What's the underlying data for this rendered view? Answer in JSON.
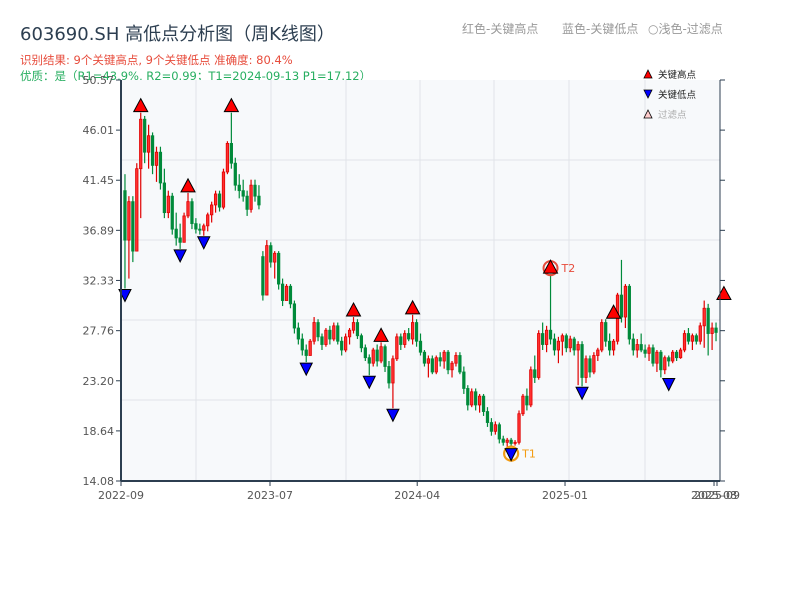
{
  "header": {
    "title": "603690.SH 高低点分析图（周K线图）",
    "result_line": "识别结果: 9个关键高点, 9个关键低点  准确度: 80.4%",
    "quality_line": "优质：是（R1=43.9%, R2=0.99；T1=2024-09-13 P1=17.12）",
    "hint_red": "红色-关键高点",
    "hint_blue": "蓝色-关键低点",
    "hint_filtered": "○浅色-过滤点"
  },
  "legend": {
    "items": [
      {
        "label": "关键高点",
        "marker": "triangle-up",
        "color": "#ff0000"
      },
      {
        "label": "关键低点",
        "marker": "triangle-down",
        "color": "#0000ff"
      },
      {
        "label": "过滤点",
        "marker": "triangle-up-light",
        "color": "#ffcccc"
      }
    ]
  },
  "colors": {
    "up": "#e00000",
    "down": "#008a3a",
    "grid": "#e1e4e8",
    "plot_bg": "#f7f9fb",
    "axis": "#2c3e50",
    "t1_ring": "#f39c12",
    "t2_ring": "#e74c3c"
  },
  "chart_data": {
    "type": "candlestick",
    "title": "603690.SH 高低点分析图（周K线图）",
    "xlabel": "",
    "ylabel": "",
    "ylim": [
      14.08,
      50.57
    ],
    "y_ticks": [
      14.08,
      18.64,
      23.2,
      27.76,
      32.33,
      36.89,
      41.45,
      46.01,
      50.57
    ],
    "x_ticks": [
      {
        "label": "2022-09",
        "pos": 0
      },
      {
        "label": "2023-07",
        "pos": 0.25
      },
      {
        "label": "2024-04",
        "pos": 0.497
      },
      {
        "label": "2025-01",
        "pos": 0.745
      },
      {
        "label": "2025-08",
        "pos": 0.995
      },
      {
        "label": "2025-09",
        "pos": 1.0
      }
    ],
    "key_highs": [
      {
        "idx": 4,
        "price": 47.6
      },
      {
        "idx": 16,
        "price": 40.3
      },
      {
        "idx": 27,
        "price": 47.6
      },
      {
        "idx": 58,
        "price": 29.0
      },
      {
        "idx": 65,
        "price": 26.7
      },
      {
        "idx": 73,
        "price": 29.2
      },
      {
        "idx": 108,
        "price": 32.9,
        "tag": "T2"
      },
      {
        "idx": 124,
        "price": 28.8
      },
      {
        "idx": 152,
        "price": 30.5
      }
    ],
    "key_lows": [
      {
        "idx": 0,
        "price": 31.6
      },
      {
        "idx": 14,
        "price": 35.2
      },
      {
        "idx": 20,
        "price": 36.4
      },
      {
        "idx": 46,
        "price": 24.9
      },
      {
        "idx": 62,
        "price": 23.7
      },
      {
        "idx": 68,
        "price": 20.7
      },
      {
        "idx": 98,
        "price": 17.12,
        "tag": "T1"
      },
      {
        "idx": 116,
        "price": 22.7
      },
      {
        "idx": 138,
        "price": 23.5
      }
    ],
    "candles": [
      [
        40.5,
        42.0,
        31.6,
        36.0
      ],
      [
        36.0,
        40.0,
        32.5,
        39.5
      ],
      [
        39.5,
        40.0,
        34.0,
        35.0
      ],
      [
        35.0,
        43.0,
        36.5,
        42.5
      ],
      [
        42.5,
        47.6,
        38.0,
        47.0
      ],
      [
        47.0,
        47.3,
        43.0,
        44.0
      ],
      [
        44.0,
        46.5,
        42.5,
        45.5
      ],
      [
        45.5,
        45.8,
        42.0,
        42.8
      ],
      [
        42.8,
        44.5,
        41.3,
        44.0
      ],
      [
        44.0,
        44.5,
        40.6,
        41.2
      ],
      [
        41.2,
        42.5,
        38.0,
        38.5
      ],
      [
        38.5,
        40.5,
        38.0,
        40.0
      ],
      [
        40.0,
        40.3,
        36.5,
        37.0
      ],
      [
        37.0,
        38.5,
        35.5,
        36.2
      ],
      [
        36.2,
        37.5,
        35.2,
        35.8
      ],
      [
        35.8,
        38.5,
        36.0,
        38.2
      ],
      [
        38.2,
        40.3,
        38.0,
        39.5
      ],
      [
        39.5,
        39.8,
        37.0,
        37.5
      ],
      [
        37.5,
        38.0,
        36.6,
        37.0
      ],
      [
        37.0,
        37.5,
        36.5,
        36.9
      ],
      [
        36.9,
        37.5,
        36.4,
        37.3
      ],
      [
        37.3,
        38.5,
        36.8,
        38.3
      ],
      [
        38.3,
        39.5,
        37.6,
        39.2
      ],
      [
        39.2,
        40.5,
        38.5,
        40.2
      ],
      [
        40.2,
        40.5,
        38.6,
        39.0
      ],
      [
        39.0,
        42.5,
        38.8,
        42.2
      ],
      [
        42.2,
        45.0,
        42.0,
        44.8
      ],
      [
        44.8,
        47.6,
        42.5,
        43.0
      ],
      [
        43.0,
        43.5,
        40.5,
        41.0
      ],
      [
        41.0,
        42.0,
        39.8,
        40.5
      ],
      [
        40.5,
        41.5,
        39.5,
        40.0
      ],
      [
        40.0,
        40.5,
        38.2,
        38.8
      ],
      [
        38.8,
        41.5,
        38.5,
        41.0
      ],
      [
        41.0,
        41.5,
        39.5,
        40.0
      ],
      [
        40.0,
        41.0,
        38.8,
        39.2
      ],
      [
        34.5,
        35.0,
        30.5,
        31.0
      ],
      [
        31.0,
        36.0,
        31.2,
        35.5
      ],
      [
        35.5,
        35.8,
        33.5,
        34.0
      ],
      [
        34.0,
        35.0,
        32.5,
        34.8
      ],
      [
        34.8,
        35.0,
        31.5,
        32.0
      ],
      [
        32.0,
        32.5,
        30.0,
        30.5
      ],
      [
        30.5,
        32.0,
        30.8,
        31.8
      ],
      [
        31.8,
        32.0,
        29.8,
        30.2
      ],
      [
        30.2,
        30.5,
        27.5,
        28.0
      ],
      [
        28.0,
        28.5,
        26.5,
        27.0
      ],
      [
        27.0,
        27.5,
        25.5,
        26.0
      ],
      [
        26.0,
        26.5,
        24.9,
        25.5
      ],
      [
        25.5,
        27.0,
        25.6,
        26.8
      ],
      [
        26.8,
        29.0,
        26.5,
        28.5
      ],
      [
        28.5,
        28.8,
        26.8,
        27.2
      ],
      [
        27.2,
        27.5,
        26.0,
        26.5
      ],
      [
        26.5,
        28.0,
        26.3,
        27.8
      ],
      [
        27.8,
        28.2,
        26.5,
        27.0
      ],
      [
        27.0,
        28.5,
        26.8,
        28.2
      ],
      [
        28.2,
        28.5,
        26.5,
        26.8
      ],
      [
        26.8,
        27.2,
        25.5,
        26.0
      ],
      [
        26.0,
        27.5,
        25.8,
        27.2
      ],
      [
        27.2,
        28.0,
        26.5,
        27.8
      ],
      [
        27.8,
        29.0,
        27.5,
        28.5
      ],
      [
        28.5,
        28.8,
        27.0,
        27.3
      ],
      [
        27.3,
        27.5,
        25.8,
        26.2
      ],
      [
        26.2,
        26.5,
        25.0,
        25.3
      ],
      [
        25.3,
        25.6,
        23.7,
        24.8
      ],
      [
        24.8,
        26.2,
        24.5,
        26.0
      ],
      [
        26.0,
        26.5,
        24.5,
        25.0
      ],
      [
        25.0,
        26.7,
        24.8,
        26.3
      ],
      [
        26.3,
        26.5,
        24.0,
        24.5
      ],
      [
        24.5,
        25.0,
        22.5,
        23.0
      ],
      [
        23.0,
        25.5,
        20.7,
        25.2
      ],
      [
        25.2,
        27.5,
        25.0,
        27.2
      ],
      [
        27.2,
        27.5,
        26.0,
        26.5
      ],
      [
        26.5,
        27.8,
        26.2,
        27.5
      ],
      [
        27.5,
        28.0,
        26.8,
        27.0
      ],
      [
        27.0,
        29.2,
        26.5,
        28.5
      ],
      [
        28.5,
        28.8,
        26.3,
        26.8
      ],
      [
        26.8,
        27.5,
        25.5,
        25.8
      ],
      [
        25.8,
        26.0,
        24.5,
        24.8
      ],
      [
        24.8,
        25.5,
        23.5,
        25.2
      ],
      [
        25.2,
        25.5,
        23.8,
        24.0
      ],
      [
        24.0,
        25.5,
        23.8,
        25.3
      ],
      [
        25.3,
        25.8,
        24.5,
        25.0
      ],
      [
        25.0,
        26.0,
        24.3,
        25.8
      ],
      [
        25.8,
        26.0,
        23.8,
        24.2
      ],
      [
        24.2,
        25.0,
        23.5,
        24.8
      ],
      [
        24.8,
        25.8,
        24.5,
        25.5
      ],
      [
        25.5,
        25.8,
        23.8,
        24.0
      ],
      [
        24.0,
        24.5,
        22.0,
        22.5
      ],
      [
        22.5,
        22.8,
        20.5,
        21.0
      ],
      [
        21.0,
        22.5,
        20.8,
        22.2
      ],
      [
        22.2,
        22.5,
        20.5,
        21.0
      ],
      [
        21.0,
        22.0,
        20.3,
        21.8
      ],
      [
        21.8,
        22.0,
        20.0,
        20.4
      ],
      [
        20.4,
        20.8,
        19.0,
        19.4
      ],
      [
        19.4,
        19.8,
        18.2,
        18.6
      ],
      [
        18.6,
        19.5,
        18.3,
        19.2
      ],
      [
        19.2,
        19.4,
        17.5,
        17.9
      ],
      [
        17.9,
        18.2,
        17.3,
        17.6
      ],
      [
        17.6,
        18.0,
        17.2,
        17.8
      ],
      [
        17.8,
        18.0,
        17.12,
        17.5
      ],
      [
        17.5,
        17.8,
        17.3,
        17.6
      ],
      [
        17.6,
        20.5,
        17.4,
        20.2
      ],
      [
        20.2,
        22.0,
        20.0,
        21.8
      ],
      [
        21.8,
        22.5,
        20.5,
        21.0
      ],
      [
        21.0,
        24.5,
        20.8,
        24.2
      ],
      [
        24.2,
        25.5,
        23.0,
        23.5
      ],
      [
        23.5,
        27.8,
        23.3,
        27.5
      ],
      [
        27.5,
        28.5,
        26.0,
        26.5
      ],
      [
        26.5,
        28.2,
        25.8,
        27.8
      ],
      [
        27.8,
        32.9,
        26.5,
        27.0
      ],
      [
        27.0,
        27.5,
        25.5,
        26.0
      ],
      [
        26.0,
        27.2,
        24.8,
        26.8
      ],
      [
        26.8,
        27.5,
        25.5,
        27.3
      ],
      [
        27.3,
        27.5,
        25.8,
        26.2
      ],
      [
        26.2,
        27.3,
        25.8,
        27.0
      ],
      [
        27.0,
        27.2,
        25.5,
        26.0
      ],
      [
        26.0,
        26.8,
        22.8,
        26.5
      ],
      [
        26.5,
        26.8,
        22.7,
        23.5
      ],
      [
        23.5,
        25.5,
        23.0,
        25.2
      ],
      [
        25.2,
        25.5,
        23.5,
        24.0
      ],
      [
        24.0,
        25.8,
        23.8,
        25.5
      ],
      [
        25.5,
        26.2,
        25.0,
        26.0
      ],
      [
        26.0,
        28.8,
        25.8,
        28.5
      ],
      [
        28.5,
        28.8,
        26.3,
        26.8
      ],
      [
        26.8,
        27.5,
        25.5,
        26.0
      ],
      [
        26.0,
        27.0,
        25.5,
        26.8
      ],
      [
        26.8,
        31.2,
        26.5,
        31.0
      ],
      [
        31.0,
        34.2,
        28.5,
        29.0
      ],
      [
        29.0,
        32.0,
        28.0,
        31.8
      ],
      [
        31.8,
        32.0,
        26.5,
        27.0
      ],
      [
        27.0,
        27.5,
        25.5,
        26.0
      ],
      [
        26.0,
        27.0,
        25.3,
        26.5
      ],
      [
        26.5,
        27.5,
        25.8,
        26.0
      ],
      [
        26.0,
        26.5,
        25.3,
        25.7
      ],
      [
        25.7,
        26.5,
        25.0,
        26.2
      ],
      [
        26.2,
        26.5,
        24.5,
        24.8
      ],
      [
        24.8,
        26.0,
        24.0,
        25.8
      ],
      [
        25.8,
        26.0,
        23.5,
        24.2
      ],
      [
        24.2,
        25.5,
        23.8,
        25.3
      ],
      [
        25.3,
        25.5,
        24.5,
        25.0
      ],
      [
        25.0,
        26.0,
        24.8,
        25.8
      ],
      [
        25.8,
        26.0,
        25.0,
        25.3
      ],
      [
        25.3,
        26.2,
        25.2,
        26.0
      ],
      [
        26.0,
        27.8,
        25.8,
        27.5
      ],
      [
        27.5,
        28.0,
        26.5,
        26.8
      ],
      [
        26.8,
        27.5,
        26.0,
        27.3
      ],
      [
        27.3,
        27.5,
        26.5,
        26.8
      ],
      [
        26.8,
        28.5,
        26.5,
        28.2
      ],
      [
        28.2,
        30.5,
        26.2,
        29.8
      ],
      [
        29.8,
        30.2,
        25.5,
        27.5
      ],
      [
        27.5,
        28.5,
        26.0,
        28.0
      ],
      [
        28.0,
        28.5,
        26.8,
        27.6
      ]
    ]
  }
}
